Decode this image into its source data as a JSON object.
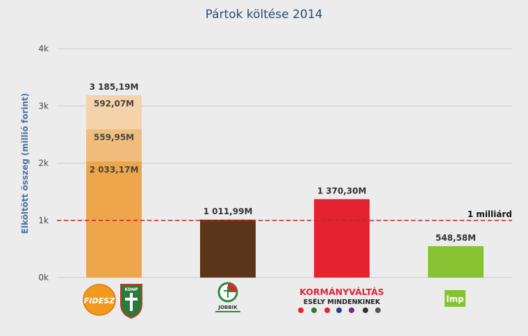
{
  "chart_data": {
    "type": "bar",
    "title": "Pártok költése 2014",
    "ylabel": "Elköltött összeg (millió forint)",
    "xlabel": "",
    "ylim": [
      0,
      4000
    ],
    "yticks": [
      0,
      1000,
      2000,
      3000,
      4000
    ],
    "ytick_labels": [
      "0k",
      "1k",
      "2k",
      "3k",
      "4k"
    ],
    "grid": true,
    "categories": [
      "FIDESZ – KDNP",
      "JOBBIK",
      "KORMÁNYVÁLTÁS – ESÉLY MINDENKINEK",
      "LMP"
    ],
    "bars": [
      {
        "category": "FIDESZ – KDNP",
        "total": 3185.19,
        "total_label": "3 185,19M",
        "segments": [
          {
            "value": 2033.17,
            "label": "2 033,17M",
            "color": "#eda64b"
          },
          {
            "value": 559.95,
            "label": "559,95M",
            "color": "#f0bd7c"
          },
          {
            "value": 592.07,
            "label": "592,07M",
            "color": "#f4d3aa"
          }
        ]
      },
      {
        "category": "JOBBIK",
        "total": 1011.99,
        "total_label": "1 011,99M",
        "segments": [
          {
            "value": 1011.99,
            "label": "",
            "color": "#5a3519"
          }
        ]
      },
      {
        "category": "KORMÁNYVÁLTÁS – ESÉLY MINDENKINEK",
        "total": 1370.3,
        "total_label": "1 370,30M",
        "segments": [
          {
            "value": 1370.3,
            "label": "",
            "color": "#e52230"
          }
        ]
      },
      {
        "category": "LMP",
        "total": 548.58,
        "total_label": "548,58M",
        "segments": [
          {
            "value": 548.58,
            "label": "",
            "color": "#86c232"
          }
        ]
      }
    ],
    "reference_line": {
      "value": 1000,
      "label": "1 milliárd",
      "color": "#cc2222"
    }
  },
  "logos": {
    "fidesz": "FIDESZ",
    "kdnp": "KDNP",
    "jobbik": "JOBBIK",
    "kormanyvaltas_line1": "KORMÁNYVÁLTÁS",
    "kormanyvaltas_line2": "ESÉLY MINDENKINEK",
    "lmp": "lmp"
  }
}
